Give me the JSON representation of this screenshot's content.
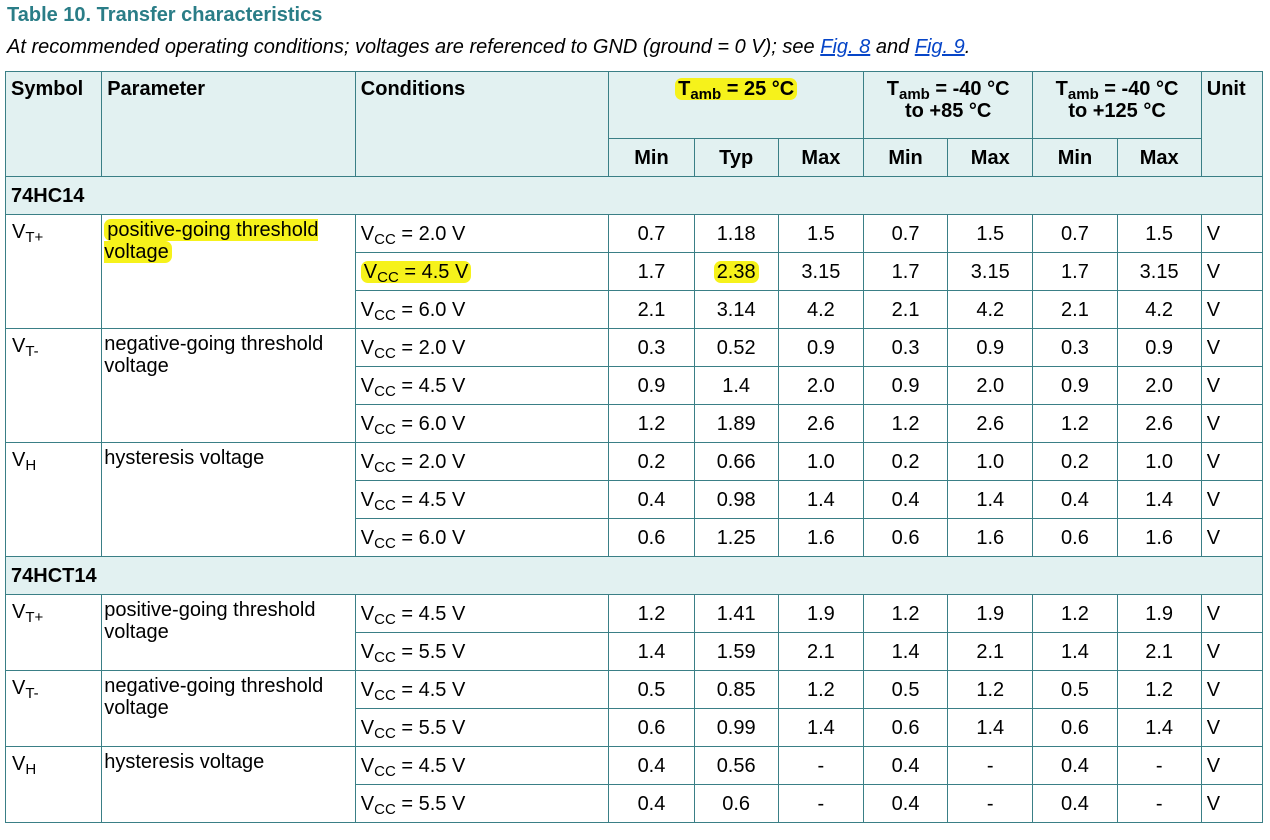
{
  "title": "Table 10. Transfer characteristics",
  "subtitle": {
    "text_before": "At recommended operating conditions; voltages are referenced to GND (ground = 0 V); see ",
    "link1": "Fig. 8",
    "text_mid": " and ",
    "link2": "Fig. 9",
    "text_after": "."
  },
  "header": {
    "symbol": "Symbol",
    "parameter": "Parameter",
    "conditions": "Conditions",
    "group1": {
      "t": "T",
      "sub": "amb",
      "rest": " = 25 °C"
    },
    "group2": {
      "t": "T",
      "sub": "amb",
      "rest": " = -40 °C",
      "line2": "to +85 °C"
    },
    "group3": {
      "t": "T",
      "sub": "amb",
      "rest": " = -40 °C",
      "line2": "to +125 °C"
    },
    "unit": "Unit",
    "min": "Min",
    "typ": "Typ",
    "max": "Max"
  },
  "groups": [
    {
      "name": "74HC14",
      "params": [
        {
          "sym": "V",
          "sym_sub": "T+",
          "param": "positive-going threshold voltage",
          "highlight": true,
          "rows": [
            {
              "cond_sub": "CC",
              "cond": " = 2.0 V",
              "vals": [
                "0.7",
                "1.18",
                "1.5",
                "0.7",
                "1.5",
                "0.7",
                "1.5"
              ],
              "unit": "V"
            },
            {
              "cond_sub": "CC",
              "cond": " = 4.5 V",
              "vals": [
                "1.7",
                "2.38",
                "3.15",
                "1.7",
                "3.15",
                "1.7",
                "3.15"
              ],
              "unit": "V",
              "highlight": true
            },
            {
              "cond_sub": "CC",
              "cond": " = 6.0 V",
              "vals": [
                "2.1",
                "3.14",
                "4.2",
                "2.1",
                "4.2",
                "2.1",
                "4.2"
              ],
              "unit": "V"
            }
          ]
        },
        {
          "sym": "V",
          "sym_sub": "T-",
          "param": "negative-going threshold voltage",
          "rows": [
            {
              "cond_sub": "CC",
              "cond": " = 2.0 V",
              "vals": [
                "0.3",
                "0.52",
                "0.9",
                "0.3",
                "0.9",
                "0.3",
                "0.9"
              ],
              "unit": "V"
            },
            {
              "cond_sub": "CC",
              "cond": " = 4.5 V",
              "vals": [
                "0.9",
                "1.4",
                "2.0",
                "0.9",
                "2.0",
                "0.9",
                "2.0"
              ],
              "unit": "V"
            },
            {
              "cond_sub": "CC",
              "cond": " = 6.0 V",
              "vals": [
                "1.2",
                "1.89",
                "2.6",
                "1.2",
                "2.6",
                "1.2",
                "2.6"
              ],
              "unit": "V"
            }
          ]
        },
        {
          "sym": "V",
          "sym_sub": "H",
          "param": "hysteresis voltage",
          "rows": [
            {
              "cond_sub": "CC",
              "cond": " = 2.0 V",
              "vals": [
                "0.2",
                "0.66",
                "1.0",
                "0.2",
                "1.0",
                "0.2",
                "1.0"
              ],
              "unit": "V"
            },
            {
              "cond_sub": "CC",
              "cond": " = 4.5 V",
              "vals": [
                "0.4",
                "0.98",
                "1.4",
                "0.4",
                "1.4",
                "0.4",
                "1.4"
              ],
              "unit": "V"
            },
            {
              "cond_sub": "CC",
              "cond": " = 6.0 V",
              "vals": [
                "0.6",
                "1.25",
                "1.6",
                "0.6",
                "1.6",
                "0.6",
                "1.6"
              ],
              "unit": "V"
            }
          ]
        }
      ]
    },
    {
      "name": "74HCT14",
      "params": [
        {
          "sym": "V",
          "sym_sub": "T+",
          "param": "positive-going threshold voltage",
          "rows": [
            {
              "cond_sub": "CC",
              "cond": " = 4.5 V",
              "vals": [
                "1.2",
                "1.41",
                "1.9",
                "1.2",
                "1.9",
                "1.2",
                "1.9"
              ],
              "unit": "V"
            },
            {
              "cond_sub": "CC",
              "cond": " = 5.5 V",
              "vals": [
                "1.4",
                "1.59",
                "2.1",
                "1.4",
                "2.1",
                "1.4",
                "2.1"
              ],
              "unit": "V"
            }
          ]
        },
        {
          "sym": "V",
          "sym_sub": "T-",
          "param": "negative-going threshold voltage",
          "rows": [
            {
              "cond_sub": "CC",
              "cond": " = 4.5 V",
              "vals": [
                "0.5",
                "0.85",
                "1.2",
                "0.5",
                "1.2",
                "0.5",
                "1.2"
              ],
              "unit": "V"
            },
            {
              "cond_sub": "CC",
              "cond": " = 5.5 V",
              "vals": [
                "0.6",
                "0.99",
                "1.4",
                "0.6",
                "1.4",
                "0.6",
                "1.4"
              ],
              "unit": "V"
            }
          ]
        },
        {
          "sym": "V",
          "sym_sub": "H",
          "param": "hysteresis voltage",
          "rows": [
            {
              "cond_sub": "CC",
              "cond": " = 4.5 V",
              "vals": [
                "0.4",
                "0.56",
                "-",
                "0.4",
                "-",
                "0.4",
                "-"
              ],
              "unit": "V"
            },
            {
              "cond_sub": "CC",
              "cond": " = 5.5 V",
              "vals": [
                "0.4",
                "0.6",
                "-",
                "0.4",
                "-",
                "0.4",
                "-"
              ],
              "unit": "V"
            }
          ]
        }
      ]
    }
  ],
  "colors": {
    "title": "#2a7d87",
    "header_bg": "#e2f1f1",
    "border": "#3a7f86",
    "highlight": "#f6f21b",
    "link": "#0645c8"
  }
}
